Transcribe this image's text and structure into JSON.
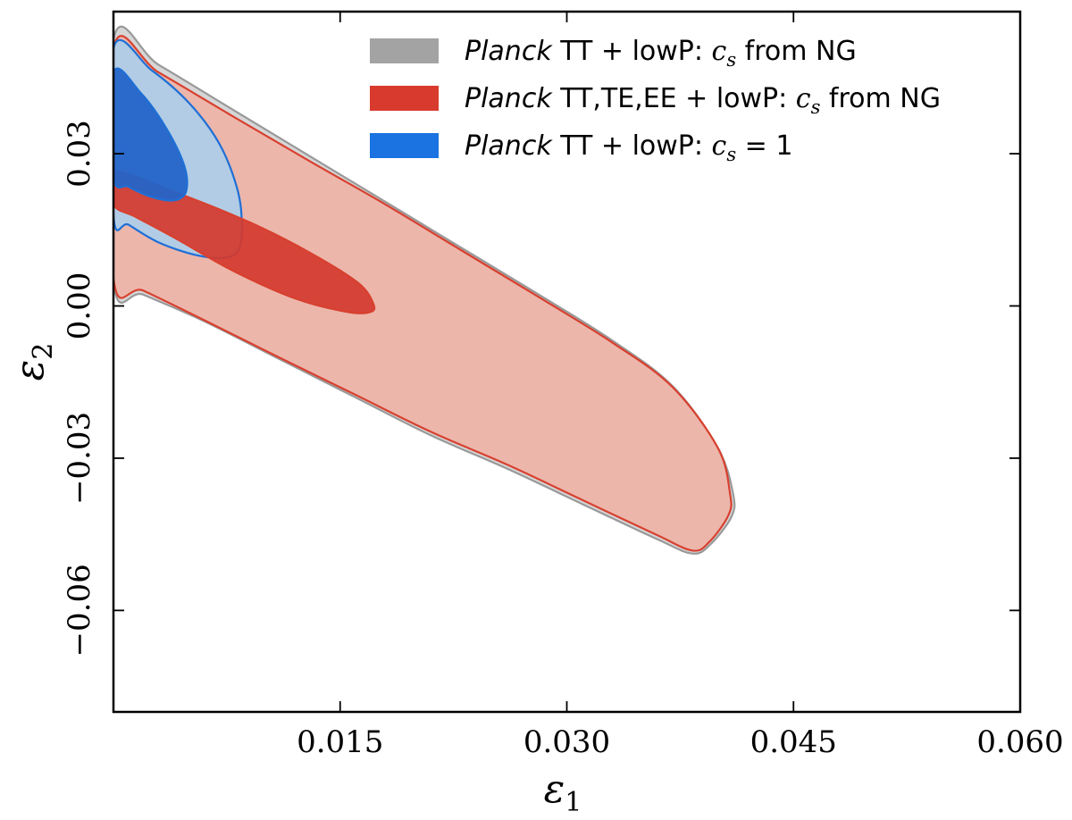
{
  "chart_data": {
    "type": "contour",
    "xlabel": "ε",
    "xlabel_sub": "1",
    "ylabel": "ε",
    "ylabel_sub": "2",
    "xlim": [
      0.0,
      0.06
    ],
    "ylim": [
      -0.08,
      0.058
    ],
    "xticks": [
      {
        "value": 0.015,
        "label": "0.015"
      },
      {
        "value": 0.03,
        "label": "0.030"
      },
      {
        "value": 0.045,
        "label": "0.045"
      },
      {
        "value": 0.06,
        "label": "0.060"
      }
    ],
    "yticks": [
      {
        "value": 0.03,
        "label": "0.03"
      },
      {
        "value": 0.0,
        "label": "0.00"
      },
      {
        "value": -0.03,
        "label": "−0.03"
      },
      {
        "value": -0.06,
        "label": "−0.06"
      }
    ],
    "legend_position": "top-right",
    "series": [
      {
        "name": "Planck TT + lowP: c_s from NG",
        "legend_parts": {
          "italic": "Planck",
          "plain": " TT + lowP: ",
          "math": "c",
          "math_sub": "s",
          "tail": " from NG"
        },
        "fill_inner": "#a3a3a3",
        "fill_outer": "#d2d2d2",
        "stroke": "#999999",
        "outer_68": null,
        "outer_95": [
          [
            0.0,
            0.0525
          ],
          [
            0.003,
            0.0475
          ],
          [
            0.008,
            0.0385
          ],
          [
            0.013,
            0.0295
          ],
          [
            0.018,
            0.0205
          ],
          [
            0.023,
            0.0115
          ],
          [
            0.028,
            0.0025
          ],
          [
            0.033,
            -0.0068
          ],
          [
            0.037,
            -0.0158
          ],
          [
            0.04,
            -0.028
          ],
          [
            0.041,
            -0.037
          ],
          [
            0.0409,
            -0.0415
          ],
          [
            0.0395,
            -0.047
          ],
          [
            0.0383,
            -0.0488
          ],
          [
            0.036,
            -0.046
          ],
          [
            0.031,
            -0.039
          ],
          [
            0.026,
            -0.032
          ],
          [
            0.021,
            -0.0255
          ],
          [
            0.016,
            -0.018
          ],
          [
            0.011,
            -0.0105
          ],
          [
            0.006,
            -0.003
          ],
          [
            0.002,
            0.0022
          ],
          [
            0.0,
            0.0048
          ]
        ]
      },
      {
        "name": "Planck TT,TE,EE + lowP: c_s from NG",
        "legend_parts": {
          "italic": "Planck",
          "plain": " TT,TE,EE + lowP: ",
          "math": "c",
          "math_sub": "s",
          "tail": " from NG"
        },
        "fill_inner": "#d43a2e",
        "fill_outer": "#eeb3a6",
        "stroke": "#d8402f",
        "outer_95": [
          [
            0.0,
            0.0508
          ],
          [
            0.003,
            0.046
          ],
          [
            0.008,
            0.0372
          ],
          [
            0.013,
            0.0285
          ],
          [
            0.018,
            0.02
          ],
          [
            0.023,
            0.011
          ],
          [
            0.028,
            0.002
          ],
          [
            0.033,
            -0.0072
          ],
          [
            0.037,
            -0.016
          ],
          [
            0.04,
            -0.028
          ],
          [
            0.0408,
            -0.037
          ],
          [
            0.0407,
            -0.0412
          ],
          [
            0.0394,
            -0.0466
          ],
          [
            0.0383,
            -0.0482
          ],
          [
            0.036,
            -0.0452
          ],
          [
            0.031,
            -0.0382
          ],
          [
            0.026,
            -0.0312
          ],
          [
            0.021,
            -0.0248
          ],
          [
            0.016,
            -0.0175
          ],
          [
            0.011,
            -0.0102
          ],
          [
            0.006,
            -0.0028
          ],
          [
            0.002,
            0.003
          ],
          [
            0.0,
            0.0055
          ]
        ],
        "inner_68": [
          [
            0.0,
            0.0265
          ],
          [
            0.004,
            0.0225
          ],
          [
            0.009,
            0.0165
          ],
          [
            0.013,
            0.0105
          ],
          [
            0.0162,
            0.0045
          ],
          [
            0.0172,
            0.0004
          ],
          [
            0.017,
            -0.0012
          ],
          [
            0.0155,
            -0.0012
          ],
          [
            0.012,
            0.0015
          ],
          [
            0.008,
            0.0068
          ],
          [
            0.004,
            0.0135
          ],
          [
            0.0015,
            0.0175
          ],
          [
            0.0,
            0.02
          ]
        ]
      },
      {
        "name": "Planck TT + lowP: c_s = 1",
        "legend_parts": {
          "italic": "Planck",
          "plain": " TT + lowP: ",
          "math": "c",
          "math_sub": "s",
          "tail": " = 1"
        },
        "fill_inner": "#2464c8",
        "fill_outer": "#a8d0ee",
        "stroke": "#1f6fd6",
        "outer_95": [
          [
            0.0,
            0.0508
          ],
          [
            0.0025,
            0.0465
          ],
          [
            0.005,
            0.04
          ],
          [
            0.007,
            0.032
          ],
          [
            0.0082,
            0.023
          ],
          [
            0.0085,
            0.016
          ],
          [
            0.0083,
            0.0112
          ],
          [
            0.0074,
            0.0095
          ],
          [
            0.0055,
            0.01
          ],
          [
            0.003,
            0.0125
          ],
          [
            0.001,
            0.016
          ],
          [
            0.0,
            0.0178
          ]
        ],
        "inner_68": [
          [
            0.0,
            0.046
          ],
          [
            0.0018,
            0.042
          ],
          [
            0.0035,
            0.035
          ],
          [
            0.0047,
            0.0275
          ],
          [
            0.0048,
            0.0225
          ],
          [
            0.004,
            0.0208
          ],
          [
            0.0025,
            0.0215
          ],
          [
            0.001,
            0.0235
          ],
          [
            0.0,
            0.0255
          ]
        ]
      }
    ]
  }
}
